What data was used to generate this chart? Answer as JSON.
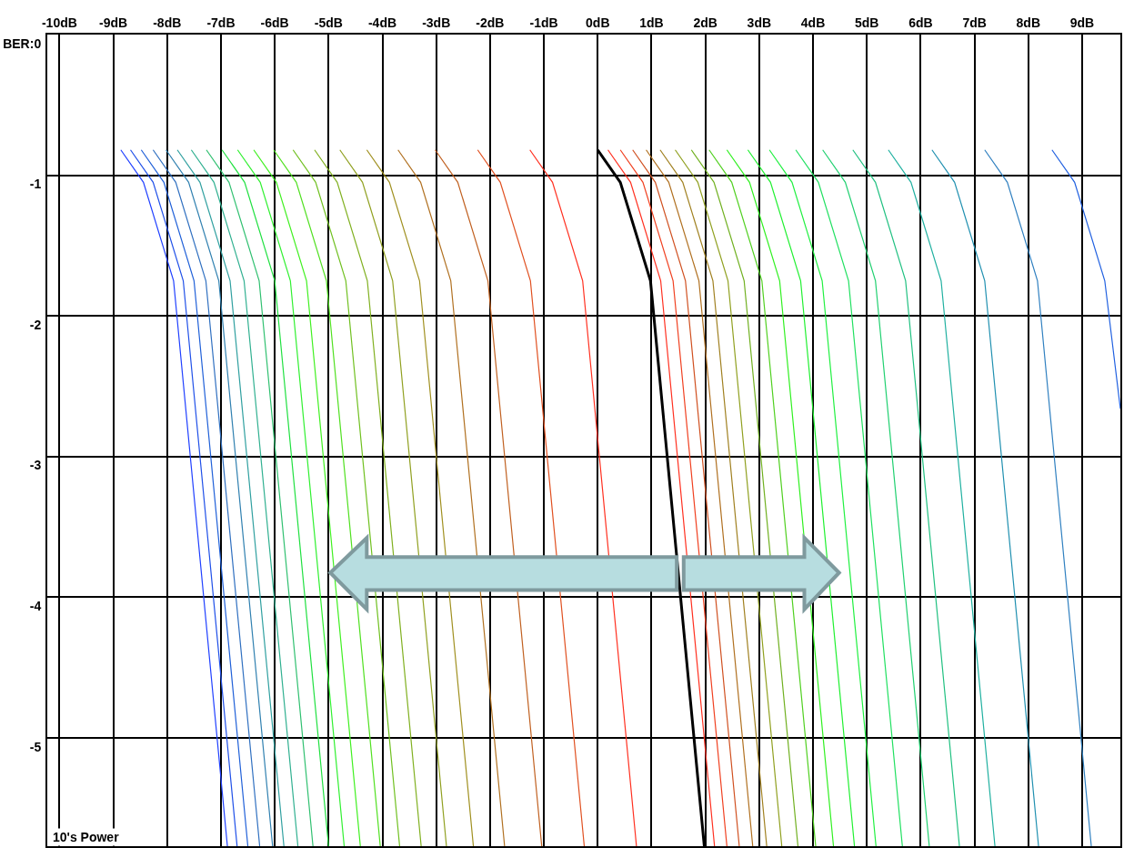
{
  "chart_data": {
    "type": "line",
    "ylabel": "10's Power",
    "xlim": [
      -10.226,
      9.71
    ],
    "ylim": [
      -5.77,
      0
    ],
    "xticks": [
      {
        "value": -10,
        "label": "-10dB"
      },
      {
        "value": -9,
        "label": "-9dB"
      },
      {
        "value": -8,
        "label": "-8dB"
      },
      {
        "value": -7,
        "label": "-7dB"
      },
      {
        "value": -6,
        "label": "-6dB"
      },
      {
        "value": -5,
        "label": "-5dB"
      },
      {
        "value": -4,
        "label": "-4dB"
      },
      {
        "value": -3,
        "label": "-3dB"
      },
      {
        "value": -2,
        "label": "-2dB"
      },
      {
        "value": -1,
        "label": "-1dB"
      },
      {
        "value": 0,
        "label": "0dB"
      },
      {
        "value": 1,
        "label": "1dB"
      },
      {
        "value": 2,
        "label": "2dB"
      },
      {
        "value": 3,
        "label": "3dB"
      },
      {
        "value": 4,
        "label": "4dB"
      },
      {
        "value": 5,
        "label": "5dB"
      },
      {
        "value": 6,
        "label": "6dB"
      },
      {
        "value": 7,
        "label": "7dB"
      },
      {
        "value": 8,
        "label": "8dB"
      },
      {
        "value": 9,
        "label": "9dB"
      }
    ],
    "yticks": [
      {
        "value": 0,
        "label": "BER:0"
      },
      {
        "value": -1,
        "label": "-1"
      },
      {
        "value": -2,
        "label": "-2"
      },
      {
        "value": -3,
        "label": "-3"
      },
      {
        "value": -4,
        "label": "-4"
      },
      {
        "value": -5,
        "label": "-5"
      }
    ],
    "grid": true,
    "marker": "none",
    "line_style": "solid",
    "series": [
      {
        "color": "#2040ff",
        "x": [
          -8.86,
          -8.44,
          -7.88,
          -6.88
        ],
        "values": [
          -0.82,
          -1.05,
          -1.75,
          -5.77
        ]
      },
      {
        "color": "#2050e8",
        "x": [
          -8.68,
          -8.26,
          -7.7,
          -6.7
        ],
        "values": [
          -0.82,
          -1.05,
          -1.75,
          -5.77
        ]
      },
      {
        "color": "#2060d8",
        "x": [
          -8.48,
          -8.06,
          -7.5,
          -6.5
        ],
        "values": [
          -0.82,
          -1.05,
          -1.75,
          -5.77
        ]
      },
      {
        "color": "#3070c0",
        "x": [
          -8.26,
          -7.84,
          -7.28,
          -6.28
        ],
        "values": [
          -0.82,
          -1.05,
          -1.75,
          -5.77
        ]
      },
      {
        "color": "#3080b0",
        "x": [
          -8.02,
          -7.6,
          -7.04,
          -6.04
        ],
        "values": [
          -0.82,
          -1.05,
          -1.75,
          -5.77
        ]
      },
      {
        "color": "#30a0a0",
        "x": [
          -7.81,
          -7.39,
          -6.83,
          -5.83
        ],
        "values": [
          -0.82,
          -1.05,
          -1.75,
          -5.77
        ]
      },
      {
        "color": "#30b090",
        "x": [
          -7.55,
          -7.13,
          -6.57,
          -5.57
        ],
        "values": [
          -0.82,
          -1.05,
          -1.75,
          -5.77
        ]
      },
      {
        "color": "#30c070",
        "x": [
          -7.27,
          -6.85,
          -6.29,
          -5.29
        ],
        "values": [
          -0.82,
          -1.05,
          -1.75,
          -5.77
        ]
      },
      {
        "color": "#20e040",
        "x": [
          -6.98,
          -6.56,
          -6.0,
          -5.0
        ],
        "values": [
          -0.82,
          -1.05,
          -1.75,
          -5.77
        ]
      },
      {
        "color": "#30f030",
        "x": [
          -6.69,
          -6.27,
          -5.71,
          -4.71
        ],
        "values": [
          -0.82,
          -1.05,
          -1.75,
          -5.77
        ]
      },
      {
        "color": "#40f020",
        "x": [
          -6.39,
          -5.97,
          -5.41,
          -4.41
        ],
        "values": [
          -0.82,
          -1.05,
          -1.75,
          -5.77
        ]
      },
      {
        "color": "#50e020",
        "x": [
          -6.02,
          -5.6,
          -5.04,
          -4.04
        ],
        "values": [
          -0.82,
          -1.05,
          -1.75,
          -5.77
        ]
      },
      {
        "color": "#70c020",
        "x": [
          -5.66,
          -5.24,
          -4.68,
          -3.68
        ],
        "values": [
          -0.82,
          -1.05,
          -1.75,
          -5.77
        ]
      },
      {
        "color": "#80b020",
        "x": [
          -5.26,
          -4.84,
          -4.28,
          -3.28
        ],
        "values": [
          -0.82,
          -1.05,
          -1.75,
          -5.77
        ]
      },
      {
        "color": "#90a020",
        "x": [
          -4.79,
          -4.37,
          -3.81,
          -2.81
        ],
        "values": [
          -0.82,
          -1.05,
          -1.75,
          -5.77
        ]
      },
      {
        "color": "#a09020",
        "x": [
          -4.29,
          -3.87,
          -3.31,
          -2.31
        ],
        "values": [
          -0.82,
          -1.05,
          -1.75,
          -5.77
        ]
      },
      {
        "color": "#b07020",
        "x": [
          -3.71,
          -3.29,
          -2.73,
          -1.73
        ],
        "values": [
          -0.82,
          -1.05,
          -1.75,
          -5.77
        ]
      },
      {
        "color": "#c06020",
        "x": [
          -3.02,
          -2.6,
          -2.04,
          -1.04
        ],
        "values": [
          -0.82,
          -1.05,
          -1.75,
          -5.77
        ]
      },
      {
        "color": "#e05020",
        "x": [
          -2.23,
          -1.81,
          -1.25,
          -0.25
        ],
        "values": [
          -0.82,
          -1.05,
          -1.75,
          -5.77
        ]
      },
      {
        "color": "#ff3020",
        "x": [
          -1.26,
          -0.84,
          -0.28,
          0.72
        ],
        "values": [
          -0.82,
          -1.05,
          -1.75,
          -5.77
        ]
      },
      {
        "color": "#000000",
        "x": [
          0.0,
          0.42,
          0.98,
          1.98
        ],
        "values": [
          -0.82,
          -1.05,
          -1.75,
          -5.77
        ]
      },
      {
        "color": "#ff3020",
        "x": [
          0.19,
          0.61,
          1.17,
          2.17
        ],
        "values": [
          -0.82,
          -1.05,
          -1.75,
          -5.77
        ]
      },
      {
        "color": "#f04020",
        "x": [
          0.42,
          0.84,
          1.4,
          2.4
        ],
        "values": [
          -0.82,
          -1.05,
          -1.75,
          -5.77
        ]
      },
      {
        "color": "#d05020",
        "x": [
          0.65,
          1.07,
          1.63,
          2.63
        ],
        "values": [
          -0.82,
          -1.05,
          -1.75,
          -5.77
        ]
      },
      {
        "color": "#b07020",
        "x": [
          0.9,
          1.32,
          1.88,
          2.88
        ],
        "values": [
          -0.82,
          -1.05,
          -1.75,
          -5.77
        ]
      },
      {
        "color": "#a08020",
        "x": [
          1.16,
          1.58,
          2.14,
          3.14
        ],
        "values": [
          -0.82,
          -1.05,
          -1.75,
          -5.77
        ]
      },
      {
        "color": "#90a020",
        "x": [
          1.44,
          1.86,
          2.42,
          3.42
        ],
        "values": [
          -0.82,
          -1.05,
          -1.75,
          -5.77
        ]
      },
      {
        "color": "#70b020",
        "x": [
          1.74,
          2.16,
          2.72,
          3.72
        ],
        "values": [
          -0.82,
          -1.05,
          -1.75,
          -5.77
        ]
      },
      {
        "color": "#50d020",
        "x": [
          2.07,
          2.49,
          3.05,
          4.05
        ],
        "values": [
          -0.82,
          -1.05,
          -1.75,
          -5.77
        ]
      },
      {
        "color": "#30f020",
        "x": [
          2.4,
          2.82,
          3.38,
          4.38
        ],
        "values": [
          -0.82,
          -1.05,
          -1.75,
          -5.77
        ]
      },
      {
        "color": "#20f030",
        "x": [
          2.79,
          3.21,
          3.77,
          4.77
        ],
        "values": [
          -0.82,
          -1.05,
          -1.75,
          -5.77
        ]
      },
      {
        "color": "#20f040",
        "x": [
          3.19,
          3.61,
          4.17,
          5.17
        ],
        "values": [
          -0.82,
          -1.05,
          -1.75,
          -5.77
        ]
      },
      {
        "color": "#20e060",
        "x": [
          3.68,
          4.1,
          4.66,
          5.66
        ],
        "values": [
          -0.82,
          -1.05,
          -1.75,
          -5.77
        ]
      },
      {
        "color": "#20d070",
        "x": [
          4.18,
          4.6,
          5.16,
          6.16
        ],
        "values": [
          -0.82,
          -1.05,
          -1.75,
          -5.77
        ]
      },
      {
        "color": "#20c080",
        "x": [
          4.74,
          5.16,
          5.72,
          6.72
        ],
        "values": [
          -0.82,
          -1.05,
          -1.75,
          -5.77
        ]
      },
      {
        "color": "#20b0a0",
        "x": [
          5.4,
          5.82,
          6.38,
          7.38
        ],
        "values": [
          -0.82,
          -1.05,
          -1.75,
          -5.77
        ]
      },
      {
        "color": "#2090b0",
        "x": [
          6.21,
          6.63,
          7.19,
          8.19
        ],
        "values": [
          -0.82,
          -1.05,
          -1.75,
          -5.77
        ]
      },
      {
        "color": "#3080c0",
        "x": [
          7.19,
          7.61,
          8.17,
          9.17
        ],
        "values": [
          -0.82,
          -1.05,
          -1.75,
          -5.77
        ]
      },
      {
        "color": "#2060e0",
        "x": [
          8.44,
          8.86,
          9.42,
          9.71
        ],
        "values": [
          -0.82,
          -1.05,
          -1.75,
          -2.66
        ]
      }
    ]
  }
}
